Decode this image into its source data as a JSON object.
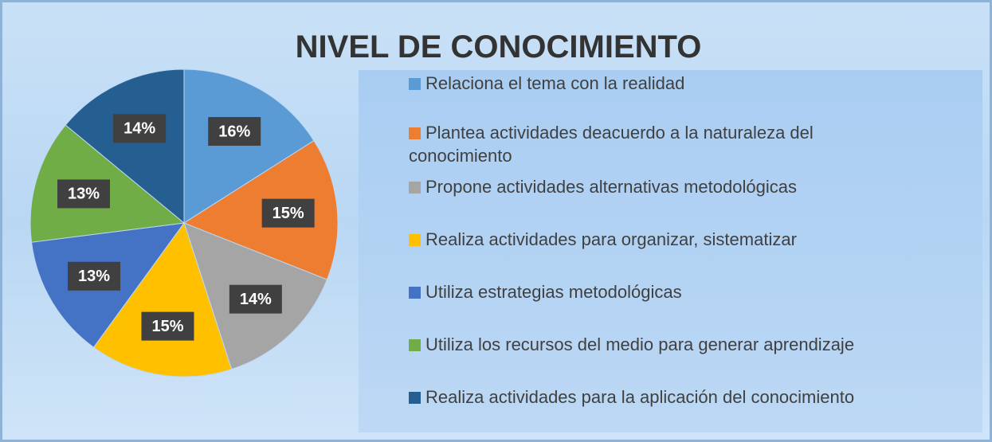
{
  "chart_data": {
    "type": "pie",
    "title": "NIVEL DE CONOCIMIENTO",
    "categories": [
      "Relaciona el tema con la realidad",
      "Plantea actividades deacuerdo a la naturaleza del conocimiento",
      "Propone actividades alternativas metodológicas",
      "Realiza actividades para organizar, sistematizar",
      "Utiliza estrategias metodológicas",
      "Utiliza los recursos del medio para generar aprendizaje",
      "Realiza actividades para la aplicación del conocimiento"
    ],
    "values": [
      16,
      15,
      14,
      15,
      13,
      13,
      14
    ],
    "value_labels": [
      "16%",
      "15%",
      "14%",
      "15%",
      "13%",
      "13%",
      "14%"
    ],
    "colors": [
      "#5b9bd5",
      "#ed7d31",
      "#a5a5a5",
      "#ffc000",
      "#4472c4",
      "#70ad47",
      "#255e91"
    ],
    "legend": "right"
  }
}
